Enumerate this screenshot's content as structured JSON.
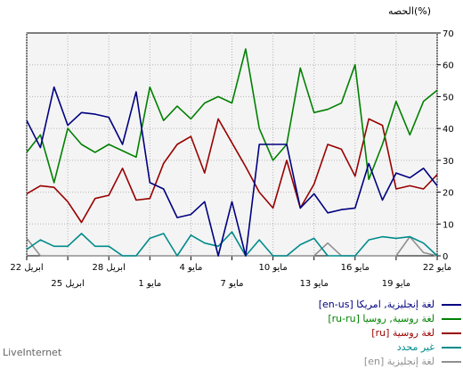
{
  "chart_data": {
    "type": "line",
    "title": "",
    "ylabel": "الحصه(%)",
    "ylim": [
      0,
      70
    ],
    "yticks": [
      "0",
      "10",
      "20",
      "30",
      "40",
      "50",
      "60",
      "70"
    ],
    "grid": true,
    "x_ticks": [
      {
        "index": 0,
        "label": "22 مايو",
        "row": 1
      },
      {
        "index": 3,
        "label": "19 مايو",
        "row": 2
      },
      {
        "index": 6,
        "label": "16 مايو",
        "row": 1
      },
      {
        "index": 9,
        "label": "13 مايو",
        "row": 2
      },
      {
        "index": 12,
        "label": "10 مايو",
        "row": 1
      },
      {
        "index": 15,
        "label": "7 مايو",
        "row": 2
      },
      {
        "index": 18,
        "label": "4 مايو",
        "row": 1
      },
      {
        "index": 21,
        "label": "1 مايو",
        "row": 2
      },
      {
        "index": 24,
        "label": "28 ابريل",
        "row": 1
      },
      {
        "index": 27,
        "label": "25 ابريل",
        "row": 2
      },
      {
        "index": 30,
        "label": "22 ابريل",
        "row": 1
      }
    ],
    "series": [
      {
        "name": "لغة إنجليزية, امريكا [en-us]",
        "color": "#000080",
        "values": [
          22,
          27.5,
          24.5,
          26,
          17.5,
          29,
          15,
          14.5,
          13.5,
          19.5,
          15,
          35,
          35,
          35,
          0,
          17,
          0,
          17,
          13,
          12,
          21,
          23,
          51.5,
          35,
          43.5,
          44.5,
          45,
          41,
          53,
          34,
          42.5
        ]
      },
      {
        "name": "لغة روسية, روسيا [ru-ru]",
        "color": "#008000",
        "values": [
          52,
          48.5,
          38,
          48.5,
          35,
          24,
          60,
          48,
          46,
          45,
          59,
          35,
          30,
          40,
          65,
          48,
          50,
          48,
          43,
          47,
          42.5,
          53,
          31,
          33,
          35,
          32.5,
          35,
          40,
          23,
          38,
          32.5
        ]
      },
      {
        "name": "لغة روسية [ru]",
        "color": "#990000",
        "values": [
          25.5,
          21,
          22,
          21,
          41,
          43,
          25,
          33.5,
          35,
          22.5,
          15,
          30,
          15,
          20,
          28,
          35.5,
          43,
          26,
          37.5,
          35,
          29,
          18,
          17.5,
          27.5,
          19,
          18,
          10.5,
          17,
          21.5,
          22,
          19.5
        ]
      },
      {
        "name": "غير محدد",
        "color": "#008B8B",
        "values": [
          0,
          4,
          6,
          5.5,
          6,
          5,
          0,
          0,
          0,
          5.5,
          3.5,
          0,
          0,
          5,
          0,
          7.5,
          3,
          4,
          6.5,
          0,
          7,
          5.5,
          0,
          0,
          3,
          3,
          7,
          3,
          3,
          5,
          2
        ]
      },
      {
        "name": "لغة إنجليزية [en]",
        "color": "#909090",
        "values": [
          0,
          1,
          6,
          0,
          0,
          0,
          0,
          0,
          4,
          0,
          0,
          0,
          0,
          0,
          0,
          0,
          0,
          0,
          0,
          0,
          0,
          0,
          0,
          0,
          0,
          0,
          0,
          0,
          0,
          0,
          5.5
        ]
      }
    ]
  },
  "footer": "LiveInternet"
}
